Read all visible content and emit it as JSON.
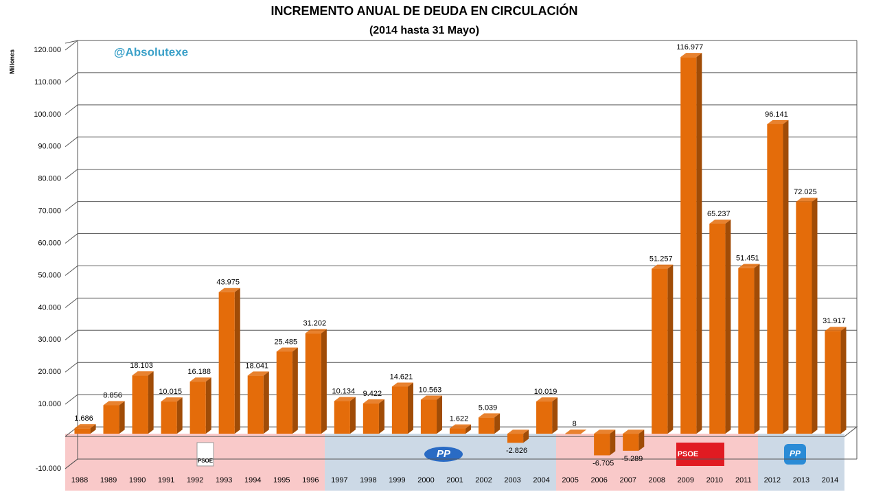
{
  "chart_data": {
    "type": "bar",
    "title": "INCREMENTO ANUAL DE DEUDA EN CIRCULACIÓN",
    "subtitle": "(2014 hasta  31 Mayo)",
    "y_label": "Millones",
    "annotation": "@Absolutexe",
    "party_labels": [
      "PSOE",
      "PP",
      "PSOE",
      "PP"
    ],
    "categories": [
      "1988",
      "1989",
      "1990",
      "1991",
      "1992",
      "1993",
      "1994",
      "1995",
      "1996",
      "1997",
      "1998",
      "1999",
      "2000",
      "2001",
      "2002",
      "2003",
      "2004",
      "2005",
      "2006",
      "2007",
      "2008",
      "2009",
      "2010",
      "2011",
      "2012",
      "2013",
      "2014"
    ],
    "values": [
      1686,
      8856,
      18103,
      10015,
      16188,
      43975,
      18041,
      25485,
      31202,
      10134,
      9422,
      14621,
      10563,
      1622,
      5039,
      -2826,
      10019,
      8,
      -6705,
      -5289,
      51257,
      116977,
      65237,
      51451,
      96141,
      72025,
      31917
    ],
    "value_labels": [
      "1.686",
      "8.856",
      "18.103",
      "10.015",
      "16.188",
      "43.975",
      "18.041",
      "25.485",
      "31.202",
      "10.134",
      "9.422",
      "14.621",
      "10.563",
      "1.622",
      "5.039",
      "-2.826",
      "10.019",
      "8",
      "-6.705",
      "-5.289",
      "51.257",
      "116.977",
      "65.237",
      "51.451",
      "96.141",
      "72.025",
      "31.917"
    ],
    "color": "#e46c0a",
    "ylim": [
      -10000,
      120000
    ],
    "yticks": [
      {
        "value": -10000,
        "label": "-10.000"
      },
      {
        "value": 10000,
        "label": "10.000"
      },
      {
        "value": 20000,
        "label": "20.000"
      },
      {
        "value": 30000,
        "label": "30.000"
      },
      {
        "value": 40000,
        "label": "40.000"
      },
      {
        "value": 50000,
        "label": "50.000"
      },
      {
        "value": 60000,
        "label": "60.000"
      },
      {
        "value": 70000,
        "label": "70.000"
      },
      {
        "value": 80000,
        "label": "80.000"
      },
      {
        "value": 90000,
        "label": "90.000"
      },
      {
        "value": 100000,
        "label": "100.000"
      },
      {
        "value": 110000,
        "label": "110.000"
      },
      {
        "value": 120000,
        "label": "120.000"
      }
    ],
    "grid": true
  }
}
